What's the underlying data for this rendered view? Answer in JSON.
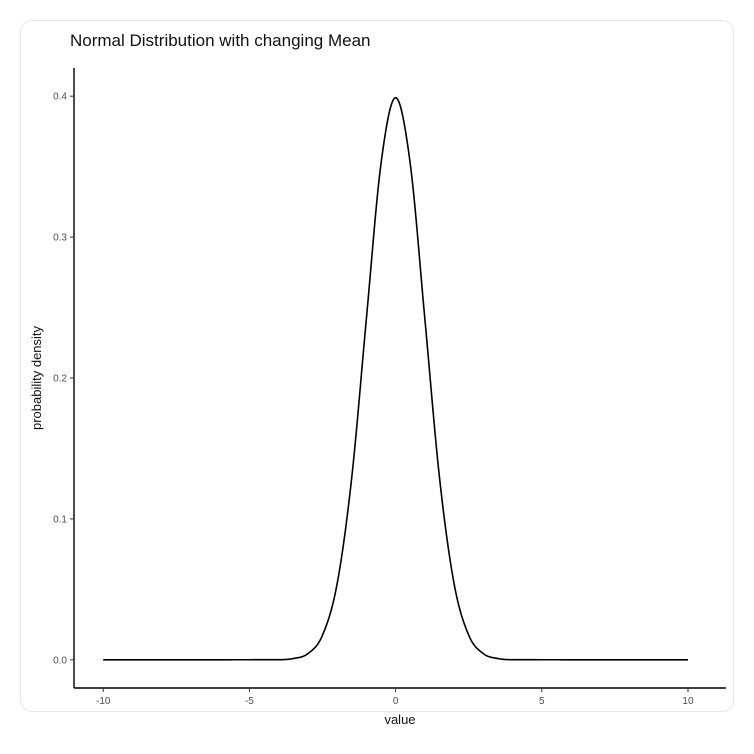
{
  "chart_data": {
    "type": "line",
    "title": "Normal Distribution with changing Mean",
    "xlabel": "value",
    "ylabel": "probability density",
    "xlim": [
      -11.0,
      11.3
    ],
    "ylim": [
      -0.02,
      0.42
    ],
    "x_ticks": [
      -10,
      -5,
      0,
      5,
      10
    ],
    "x_tick_labels": [
      "-10",
      "-5",
      "0",
      "5",
      "10"
    ],
    "y_ticks": [
      0.0,
      0.1,
      0.2,
      0.3,
      0.4
    ],
    "y_tick_labels": [
      "0.0",
      "0.1",
      "0.2",
      "0.3",
      "0.4"
    ],
    "grid": false,
    "series": [
      {
        "x": [
          -10,
          -4,
          -3.5,
          -3,
          -2.5,
          -2,
          -1.5,
          -1,
          -0.5,
          0,
          0.5,
          1,
          1.5,
          2,
          2.5,
          3,
          3.5,
          4,
          10
        ],
        "y": [
          0.0,
          0.0001,
          0.0009,
          0.0044,
          0.0175,
          0.054,
          0.1295,
          0.242,
          0.3521,
          0.3989,
          0.3521,
          0.242,
          0.1295,
          0.054,
          0.0175,
          0.0044,
          0.0009,
          0.0001,
          0.0
        ]
      }
    ]
  }
}
